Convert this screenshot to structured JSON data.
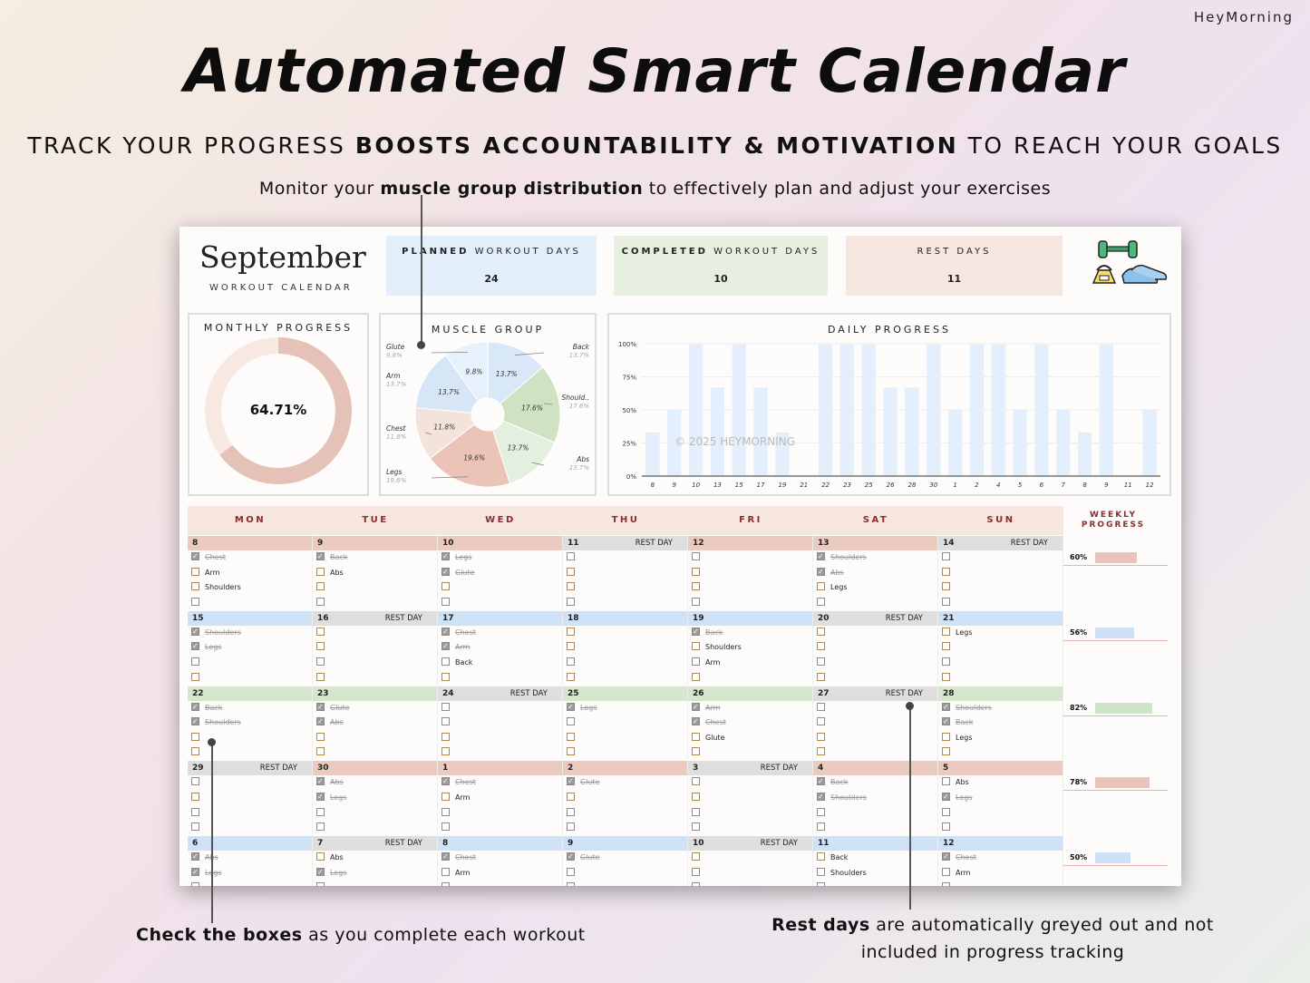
{
  "brand": "HeyMorning",
  "title": "Automated Smart Calendar",
  "subtitle": {
    "pre": "TRACK YOUR PROGRESS ",
    "bold": "BOOSTS ACCOUNTABILITY & MOTIVATION",
    "post": " TO REACH YOUR GOALS"
  },
  "callouts": {
    "top": {
      "pre": "Monitor your ",
      "bold": "muscle group distribution",
      "post": " to effectively plan and adjust your exercises"
    },
    "left": {
      "bold": "Check the boxes",
      "post": " as you complete each workout"
    },
    "right": {
      "bold": "Rest days",
      "post": " are automatically greyed out and not included in progress tracking"
    }
  },
  "sheet": {
    "month": "September",
    "month_sub": "WORKOUT CALENDAR",
    "stats": [
      {
        "bold": "PLANNED",
        "rest": " WORKOUT DAYS",
        "value": "24",
        "color": "#e3eefb"
      },
      {
        "bold": "COMPLETED",
        "rest": " WORKOUT DAYS",
        "value": "10",
        "color": "#e6efe0"
      },
      {
        "bold": "",
        "rest": "REST DAYS",
        "value": "11",
        "color": "#f5e6df"
      }
    ],
    "icons": [
      "dumbbell-icon",
      "kettlebell-icon",
      "sneakers-icon"
    ],
    "monthly_progress": {
      "title": "MONTHLY PROGRESS",
      "value_text": "64.71%",
      "fraction": 0.6471,
      "fill": "#e5c2b7",
      "track": "#f7e8e2"
    },
    "muscle_group": {
      "title": "MUSCLE GROUP",
      "slices": [
        {
          "name": "Back",
          "pct": "13.7%",
          "value": 13.7,
          "color": "#d9e8f8"
        },
        {
          "name": "Should..",
          "pct": "17.6%",
          "value": 17.6,
          "color": "#cfe3c3"
        },
        {
          "name": "Abs",
          "pct": "13.7%",
          "value": 13.7,
          "color": "#e4efe0"
        },
        {
          "name": "Legs",
          "pct": "19.6%",
          "value": 19.6,
          "color": "#ebc3b7"
        },
        {
          "name": "Chest",
          "pct": "11.8%",
          "value": 11.8,
          "color": "#f4e3db"
        },
        {
          "name": "Arm",
          "pct": "13.7%",
          "value": 13.7,
          "color": "#d6e6f7"
        },
        {
          "name": "Glute",
          "pct": "9.8%",
          "value": 9.8,
          "color": "#e7f1fb"
        }
      ]
    },
    "daily_progress": {
      "title": "DAILY PROGRESS",
      "watermark": "© 2025 HEYMORNING",
      "yticks": [
        "0%",
        "25%",
        "50%",
        "75%",
        "100%"
      ],
      "categories": [
        "8",
        "9",
        "10",
        "13",
        "15",
        "17",
        "19",
        "21",
        "22",
        "23",
        "25",
        "26",
        "28",
        "30",
        "1",
        "2",
        "4",
        "5",
        "6",
        "7",
        "8",
        "9",
        "11",
        "12"
      ],
      "values": [
        33,
        50,
        100,
        67,
        100,
        67,
        33,
        0,
        100,
        100,
        100,
        67,
        67,
        100,
        50,
        100,
        100,
        50,
        100,
        50,
        33,
        100,
        0,
        50
      ]
    },
    "days": [
      "MON",
      "TUE",
      "WED",
      "THU",
      "FRI",
      "SAT",
      "SUN"
    ],
    "weekly_header": [
      "WEEKLY",
      "PROGRESS"
    ],
    "rest_label": "REST DAY",
    "weeks": [
      {
        "color": "#ebcac0",
        "weekly": {
          "text": "60%",
          "value": 0.6,
          "color": "#eac4ba"
        },
        "cells": [
          {
            "day": "8",
            "rest": false,
            "tasks": [
              [
                "Chest",
                true
              ],
              [
                "Arm",
                false
              ],
              [
                "Shoulders",
                false
              ],
              [
                "",
                false
              ]
            ]
          },
          {
            "day": "9",
            "rest": false,
            "tasks": [
              [
                "Back",
                true
              ],
              [
                "Abs",
                false
              ],
              [
                "",
                false
              ],
              [
                "",
                false
              ]
            ]
          },
          {
            "day": "10",
            "rest": false,
            "tasks": [
              [
                "Legs",
                true
              ],
              [
                "Glute",
                true
              ],
              [
                "",
                false
              ],
              [
                "",
                false
              ]
            ]
          },
          {
            "day": "11",
            "rest": true,
            "tasks": [
              [
                "",
                false
              ],
              [
                "",
                false
              ],
              [
                "",
                false
              ],
              [
                "",
                false
              ]
            ]
          },
          {
            "day": "12",
            "rest": false,
            "tasks": [
              [
                "",
                false
              ],
              [
                "",
                false
              ],
              [
                "",
                false
              ],
              [
                "",
                false
              ]
            ]
          },
          {
            "day": "13",
            "rest": false,
            "tasks": [
              [
                "Shoulders",
                true
              ],
              [
                "Abs",
                true
              ],
              [
                "Legs",
                false
              ],
              [
                "",
                false
              ]
            ]
          },
          {
            "day": "14",
            "rest": true,
            "tasks": [
              [
                "",
                false
              ],
              [
                "",
                false
              ],
              [
                "",
                false
              ],
              [
                "",
                false
              ]
            ]
          }
        ]
      },
      {
        "color": "#cfe2f5",
        "weekly": {
          "text": "56%",
          "value": 0.56,
          "color": "#cde0f4"
        },
        "cells": [
          {
            "day": "15",
            "rest": false,
            "tasks": [
              [
                "Shoulders",
                true
              ],
              [
                "Legs",
                true
              ],
              [
                "",
                false
              ],
              [
                "",
                false
              ]
            ]
          },
          {
            "day": "16",
            "rest": true,
            "tasks": [
              [
                "",
                false
              ],
              [
                "",
                false
              ],
              [
                "",
                false
              ],
              [
                "",
                false
              ]
            ]
          },
          {
            "day": "17",
            "rest": false,
            "tasks": [
              [
                "Chest",
                true
              ],
              [
                "Arm",
                true
              ],
              [
                "Back",
                false
              ],
              [
                "",
                false
              ]
            ]
          },
          {
            "day": "18",
            "rest": false,
            "tasks": [
              [
                "",
                false
              ],
              [
                "",
                false
              ],
              [
                "",
                false
              ],
              [
                "",
                false
              ]
            ]
          },
          {
            "day": "19",
            "rest": false,
            "tasks": [
              [
                "Back",
                true
              ],
              [
                "Shoulders",
                false
              ],
              [
                "Arm",
                false
              ],
              [
                "",
                false
              ]
            ]
          },
          {
            "day": "20",
            "rest": true,
            "tasks": [
              [
                "",
                false
              ],
              [
                "",
                false
              ],
              [
                "",
                false
              ],
              [
                "",
                false
              ]
            ]
          },
          {
            "day": "21",
            "rest": false,
            "tasks": [
              [
                "Legs",
                false
              ],
              [
                "",
                false
              ],
              [
                "",
                false
              ],
              [
                "",
                false
              ]
            ]
          }
        ]
      },
      {
        "color": "#d4e6cc",
        "weekly": {
          "text": "82%",
          "value": 0.82,
          "color": "#cfe4c6"
        },
        "cells": [
          {
            "day": "22",
            "rest": false,
            "tasks": [
              [
                "Back",
                true
              ],
              [
                "Shoulders",
                true
              ],
              [
                "",
                false
              ],
              [
                "",
                false
              ]
            ]
          },
          {
            "day": "23",
            "rest": false,
            "tasks": [
              [
                "Glute",
                true
              ],
              [
                "Abs",
                true
              ],
              [
                "",
                false
              ],
              [
                "",
                false
              ]
            ]
          },
          {
            "day": "24",
            "rest": true,
            "tasks": [
              [
                "",
                false
              ],
              [
                "",
                false
              ],
              [
                "",
                false
              ],
              [
                "",
                false
              ]
            ]
          },
          {
            "day": "25",
            "rest": false,
            "tasks": [
              [
                "Legs",
                true
              ],
              [
                "",
                false
              ],
              [
                "",
                false
              ],
              [
                "",
                false
              ]
            ]
          },
          {
            "day": "26",
            "rest": false,
            "tasks": [
              [
                "Arm",
                true
              ],
              [
                "Chest",
                true
              ],
              [
                "Glute",
                false
              ],
              [
                "",
                false
              ]
            ]
          },
          {
            "day": "27",
            "rest": true,
            "tasks": [
              [
                "",
                false
              ],
              [
                "",
                false
              ],
              [
                "",
                false
              ],
              [
                "",
                false
              ]
            ]
          },
          {
            "day": "28",
            "rest": false,
            "tasks": [
              [
                "Shoulders",
                true
              ],
              [
                "Back",
                true
              ],
              [
                "Legs",
                false
              ],
              [
                "",
                false
              ]
            ]
          }
        ]
      },
      {
        "color": "#ebcac0",
        "weekly": {
          "text": "78%",
          "value": 0.78,
          "color": "#eac4ba"
        },
        "cells": [
          {
            "day": "29",
            "rest": true,
            "tasks": [
              [
                "",
                false
              ],
              [
                "",
                false
              ],
              [
                "",
                false
              ],
              [
                "",
                false
              ]
            ]
          },
          {
            "day": "30",
            "rest": false,
            "tasks": [
              [
                "Abs",
                true
              ],
              [
                "Legs",
                true
              ],
              [
                "",
                false
              ],
              [
                "",
                false
              ]
            ]
          },
          {
            "day": "1",
            "rest": false,
            "tasks": [
              [
                "Chest",
                true
              ],
              [
                "Arm",
                false
              ],
              [
                "",
                false
              ],
              [
                "",
                false
              ]
            ]
          },
          {
            "day": "2",
            "rest": false,
            "tasks": [
              [
                "Glute",
                true
              ],
              [
                "",
                false
              ],
              [
                "",
                false
              ],
              [
                "",
                false
              ]
            ]
          },
          {
            "day": "3",
            "rest": true,
            "tasks": [
              [
                "",
                false
              ],
              [
                "",
                false
              ],
              [
                "",
                false
              ],
              [
                "",
                false
              ]
            ]
          },
          {
            "day": "4",
            "rest": false,
            "tasks": [
              [
                "Back",
                true
              ],
              [
                "Shoulders",
                true
              ],
              [
                "",
                false
              ],
              [
                "",
                false
              ]
            ]
          },
          {
            "day": "5",
            "rest": false,
            "tasks": [
              [
                "Abs",
                false
              ],
              [
                "Legs",
                true
              ],
              [
                "",
                false
              ],
              [
                "",
                false
              ]
            ]
          }
        ]
      },
      {
        "color": "#cfe2f5",
        "weekly": {
          "text": "50%",
          "value": 0.5,
          "color": "#cde0f4"
        },
        "cells": [
          {
            "day": "6",
            "rest": false,
            "tasks": [
              [
                "Abs",
                true
              ],
              [
                "Legs",
                true
              ],
              [
                "",
                false
              ],
              [
                "",
                false
              ]
            ]
          },
          {
            "day": "7",
            "rest": true,
            "tasks": [
              [
                "Abs",
                false
              ],
              [
                "Legs",
                true
              ],
              [
                "",
                false
              ],
              [
                "",
                false
              ]
            ]
          },
          {
            "day": "8",
            "rest": false,
            "tasks": [
              [
                "Chest",
                true
              ],
              [
                "Arm",
                false
              ],
              [
                "",
                false
              ],
              [
                "",
                false
              ]
            ]
          },
          {
            "day": "9",
            "rest": false,
            "tasks": [
              [
                "Glute",
                true
              ],
              [
                "",
                false
              ],
              [
                "",
                false
              ],
              [
                "",
                false
              ]
            ]
          },
          {
            "day": "10",
            "rest": true,
            "tasks": [
              [
                "",
                false
              ],
              [
                "",
                false
              ],
              [
                "",
                false
              ],
              [
                "",
                false
              ]
            ]
          },
          {
            "day": "11",
            "rest": false,
            "tasks": [
              [
                "Back",
                false
              ],
              [
                "Shoulders",
                false
              ],
              [
                "",
                false
              ],
              [
                "",
                false
              ]
            ]
          },
          {
            "day": "12",
            "rest": false,
            "tasks": [
              [
                "Chest",
                true
              ],
              [
                "Arm",
                false
              ],
              [
                "",
                false
              ],
              [
                "",
                false
              ]
            ]
          }
        ]
      }
    ]
  }
}
